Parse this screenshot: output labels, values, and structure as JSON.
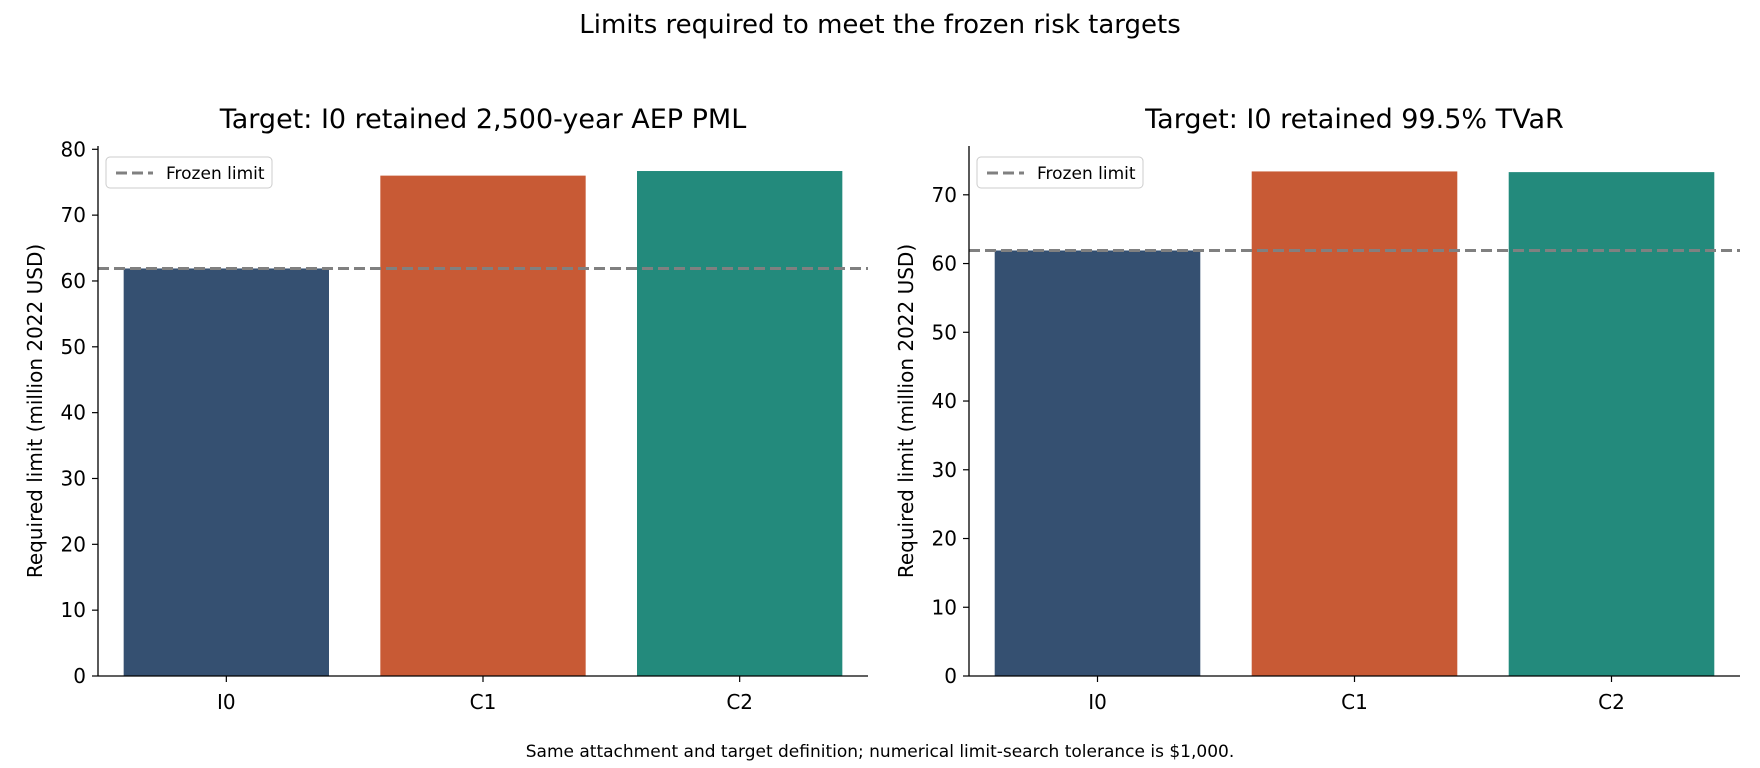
{
  "figure": {
    "title": "Limits required to meet the frozen risk targets",
    "footnote": "Same attachment and target definition; numerical limit-search tolerance is $1,000."
  },
  "colors": {
    "I0": "#355071",
    "C1": "#c85a35",
    "C2": "#238a7c",
    "reference_line": "#808080"
  },
  "chart_data": [
    {
      "type": "bar",
      "title": "Target: I0 retained 2,500-year AEP PML",
      "xlabel": "",
      "ylabel": "Required limit (million 2022 USD)",
      "categories": [
        "I0",
        "C1",
        "C2"
      ],
      "values": [
        61.9,
        76.0,
        76.7
      ],
      "ylim": [
        0,
        80.5
      ],
      "yticks": [
        0,
        10,
        20,
        30,
        40,
        50,
        60,
        70,
        80
      ],
      "reference_line": {
        "label": "Frozen limit",
        "value": 61.9,
        "style": "dashed"
      },
      "legend": {
        "position": "top-left",
        "entries": [
          "Frozen limit"
        ]
      },
      "grid": false
    },
    {
      "type": "bar",
      "title": "Target: I0 retained 99.5% TVaR",
      "xlabel": "",
      "ylabel": "Required limit (million 2022 USD)",
      "categories": [
        "I0",
        "C1",
        "C2"
      ],
      "values": [
        61.9,
        73.4,
        73.3
      ],
      "ylim": [
        0,
        77.1
      ],
      "yticks": [
        0,
        10,
        20,
        30,
        40,
        50,
        60,
        70
      ],
      "reference_line": {
        "label": "Frozen limit",
        "value": 61.9,
        "style": "dashed"
      },
      "legend": {
        "position": "top-left",
        "entries": [
          "Frozen limit"
        ]
      },
      "grid": false
    }
  ]
}
